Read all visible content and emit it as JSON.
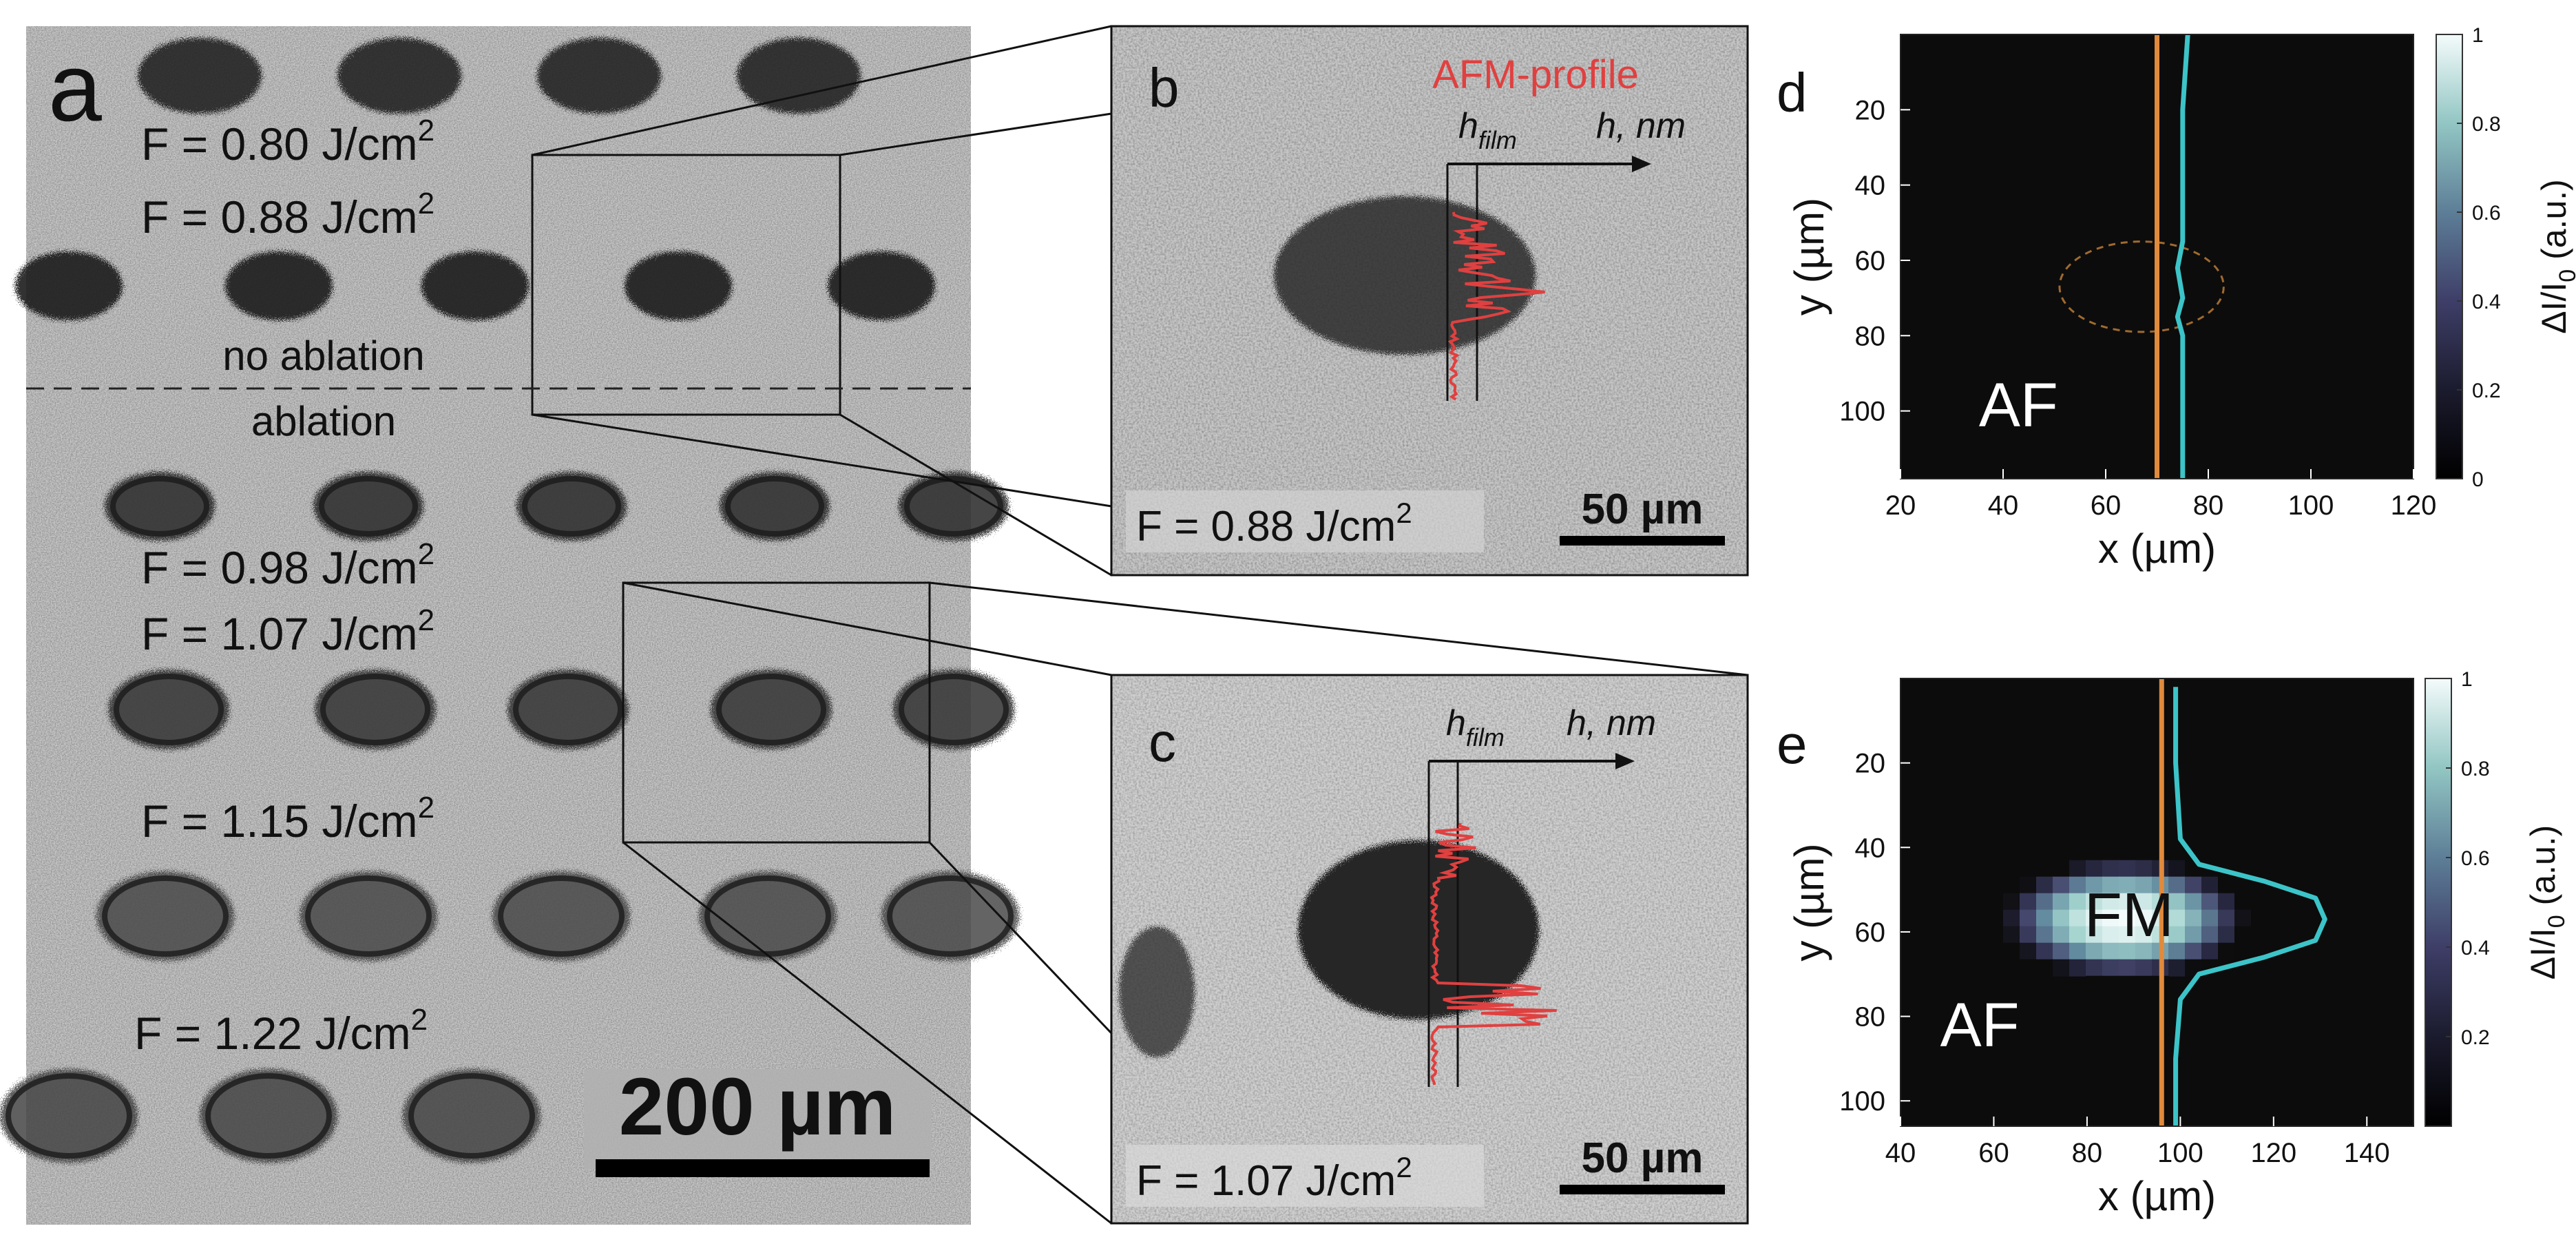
{
  "panel_a": {
    "letter": "a",
    "fluence_labels": [
      "F = 0.80 J/cm",
      "F = 0.88 J/cm",
      "F = 0.98 J/cm",
      "F = 1.07 J/cm",
      "F = 1.15 J/cm",
      "F =  1.22 J/cm"
    ],
    "superscript": "2",
    "no_ablation": "no ablation",
    "ablation": "ablation",
    "scale_bar": "200 µm"
  },
  "panel_b": {
    "letter": "b",
    "title": "AFM-profile",
    "h_film": "h",
    "h_film_sub": "film",
    "h_axis": "h, nm",
    "fluence": "F = 0.88 J/cm",
    "superscript": "2",
    "scale_bar": "50 µm"
  },
  "panel_c": {
    "letter": "c",
    "h_film": "h",
    "h_film_sub": "film",
    "h_axis": "h, nm",
    "fluence": "F = 1.07 J/cm",
    "superscript": "2",
    "scale_bar": "50 µm"
  },
  "chart_data": [
    {
      "panel": "d",
      "type": "heatmap",
      "xlabel": "x (µm)",
      "ylabel": "y (µm)",
      "colorbar_label": "ΔI/I",
      "colorbar_sub": "0",
      "colorbar_unit": " (a.u.)",
      "xticks": [
        20,
        40,
        60,
        80,
        100,
        120
      ],
      "yticks": [
        20,
        40,
        60,
        80,
        100
      ],
      "cticks": [
        "0",
        "0.2",
        "0.4",
        "0.6",
        "0.8",
        "1"
      ],
      "xlim": [
        20,
        120
      ],
      "ylim": [
        118,
        0
      ],
      "clim": [
        0,
        1
      ],
      "region_labels": [
        "AF"
      ],
      "vertical_line_x": 70,
      "profile": {
        "y": [
          0,
          20,
          40,
          55,
          62,
          70,
          75,
          80,
          90,
          100,
          118
        ],
        "x": [
          76,
          75,
          75,
          75,
          74,
          75,
          74,
          75,
          75,
          75,
          75
        ]
      },
      "ellipse": {
        "cx": 67,
        "cy": 67,
        "rx": 16,
        "ry": 12
      }
    },
    {
      "panel": "e",
      "type": "heatmap",
      "xlabel": "x (µm)",
      "ylabel": "y (µm)",
      "colorbar_label": "ΔI/I",
      "colorbar_sub": "0",
      "colorbar_unit": " (a.u.)",
      "xticks": [
        40,
        60,
        80,
        100,
        120,
        140
      ],
      "yticks": [
        20,
        40,
        60,
        80,
        100
      ],
      "cticks": [
        "0.2",
        "0.4",
        "0.6",
        "0.8",
        "1"
      ],
      "xlim": [
        40,
        150
      ],
      "ylim": [
        106,
        0
      ],
      "clim": [
        0,
        1
      ],
      "region_labels": [
        "FM",
        "AF"
      ],
      "vertical_line_x": 96,
      "blob": {
        "cx": 88,
        "cy": 57,
        "rx": 26,
        "ry": 14
      },
      "profile": {
        "y": [
          2,
          20,
          38,
          44,
          48,
          52,
          57,
          62,
          66,
          70,
          76,
          90,
          106
        ],
        "x": [
          99,
          99,
          100,
          104,
          118,
          129,
          131,
          129,
          118,
          104,
          100,
          99,
          99
        ]
      }
    }
  ],
  "colors": {
    "profile_cyan": "#3cc4c8",
    "marker_orange": "#e08a3c",
    "afm_red": "#e04040",
    "heat_background": "#0c0c0c"
  }
}
